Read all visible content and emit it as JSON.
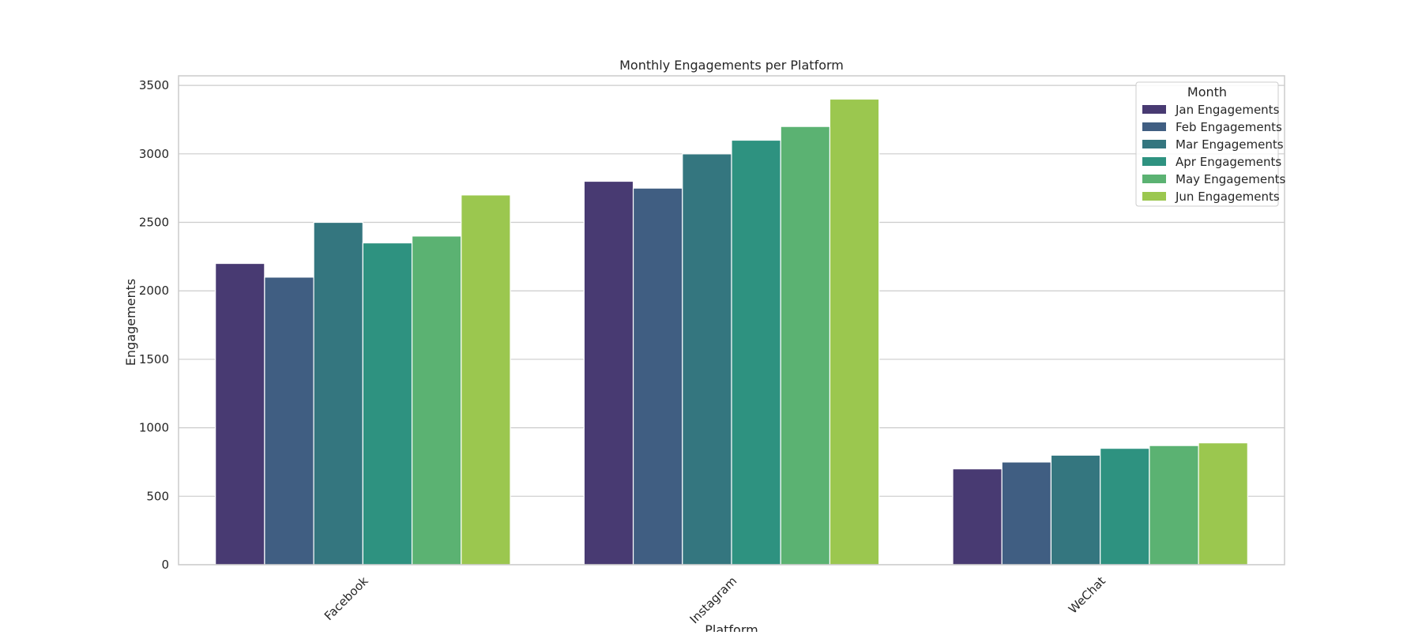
{
  "chart_data": {
    "type": "bar",
    "title": "Monthly Engagements per Platform",
    "xlabel": "Platform",
    "ylabel": "Engagements",
    "categories": [
      "Facebook",
      "Instagram",
      "WeChat"
    ],
    "series": [
      {
        "name": "Jan Engagements",
        "values": [
          2200,
          2800,
          700
        ],
        "color": "#483A72"
      },
      {
        "name": "Feb Engagements",
        "values": [
          2100,
          2750,
          750
        ],
        "color": "#405E82"
      },
      {
        "name": "Mar Engagements",
        "values": [
          2500,
          3000,
          800
        ],
        "color": "#34767F"
      },
      {
        "name": "Apr Engagements",
        "values": [
          2350,
          3100,
          850
        ],
        "color": "#2E9280"
      },
      {
        "name": "May Engagements",
        "values": [
          2400,
          3200,
          870
        ],
        "color": "#5BB272"
      },
      {
        "name": "Jun Engagements",
        "values": [
          2700,
          3400,
          890
        ],
        "color": "#9BC74F"
      }
    ],
    "ylim": [
      0,
      3570
    ],
    "yticks": [
      0,
      500,
      1000,
      1500,
      2000,
      2500,
      3000,
      3500
    ],
    "grid": "horizontal",
    "legend": {
      "title": "Month",
      "position": "top-right"
    },
    "xtick_rotation": 45
  },
  "colors": {
    "background": "#ffffff",
    "grid": "#cccccc",
    "axes_edge": "#cccccc",
    "text": "#262626"
  }
}
